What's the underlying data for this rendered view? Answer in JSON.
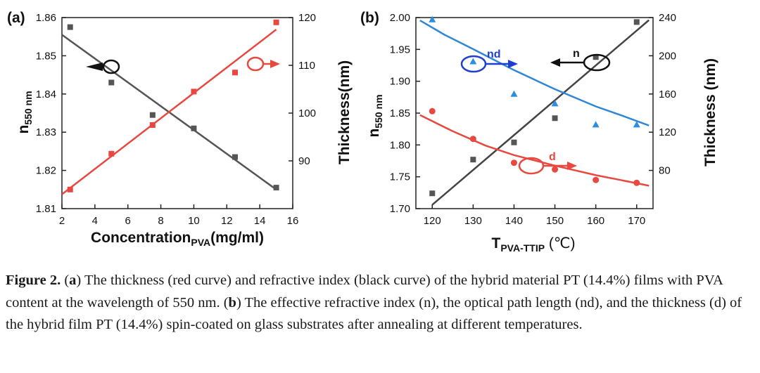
{
  "panel_a_label": "(a)",
  "panel_b_label": "(b)",
  "caption": {
    "label": "Figure 2.",
    "a_tag": "a",
    "a_text": "The thickness (red curve) and refractive index (black curve) of the hybrid material PT (14.4%) films with PVA content at the wavelength of 550 nm.",
    "b_tag": "b",
    "b_text": "The effective refractive index (n), the optical path length (nd), and the thickness (d) of the hybrid film PT (14.4%) spin-coated on glass substrates after annealing at different temperatures."
  },
  "chart_data": [
    {
      "panel": "a",
      "type": "scatter",
      "title": "",
      "xlabel": "Concentration",
      "xlabel_sub": "PVA",
      "xlabel_suffix": "(mg/ml)",
      "ylabel": "n",
      "ylabel_sub": "550 nm",
      "y2label": "Thickness(nm)",
      "xlim": [
        2,
        16
      ],
      "ylim": [
        1.81,
        1.86
      ],
      "y2lim": [
        80,
        120
      ],
      "xticks": [
        "2",
        "4",
        "6",
        "8",
        "10",
        "12",
        "14",
        "16"
      ],
      "yticks": [
        "1.81",
        "1.82",
        "1.83",
        "1.84",
        "1.85",
        "1.86"
      ],
      "y2ticks": [
        "90",
        "100",
        "110",
        "120"
      ],
      "series": [
        {
          "name": "refractive index",
          "axis": "left",
          "color": "#555555",
          "marker": "square",
          "x": [
            2.5,
            5,
            7.5,
            10,
            12.5,
            15
          ],
          "values": [
            1.8575,
            1.843,
            1.8345,
            1.831,
            1.8235,
            1.8155
          ],
          "fit": [
            [
              2,
              1.8555
            ],
            [
              15,
              1.815
            ]
          ]
        },
        {
          "name": "thickness",
          "axis": "right",
          "color": "#e8483f",
          "marker": "square",
          "x": [
            2.5,
            5,
            7.5,
            10,
            12.5,
            15
          ],
          "values": [
            84,
            91.5,
            97.5,
            104.5,
            108.5,
            119
          ],
          "fit": [
            [
              2,
              83
            ],
            [
              15,
              117.5
            ]
          ]
        }
      ],
      "annotations": [
        {
          "target": "n",
          "arrow": "left",
          "color": "#111111"
        },
        {
          "target": "thickness",
          "arrow": "right",
          "color": "#e8483f"
        }
      ]
    },
    {
      "panel": "b",
      "type": "scatter",
      "title": "",
      "xlabel": "T",
      "xlabel_sub": "PVA-TTIP",
      "xlabel_suffix": " (℃)",
      "ylabel": "n",
      "ylabel_sub": "550 nm",
      "y2label": "Thickness (nm)",
      "xlim": [
        116,
        174
      ],
      "ylim": [
        1.7,
        2.0
      ],
      "y2lim": [
        40,
        240
      ],
      "xticks": [
        "120",
        "130",
        "140",
        "150",
        "160",
        "170"
      ],
      "yticks": [
        "1.70",
        "1.75",
        "1.80",
        "1.85",
        "1.90",
        "1.95",
        "2.00"
      ],
      "y2ticks": [
        "80",
        "120",
        "160",
        "200",
        "240"
      ],
      "series": [
        {
          "name": "n",
          "axis": "left",
          "color": "#555555",
          "marker": "square",
          "x": [
            120,
            130,
            140,
            150,
            160,
            170
          ],
          "values": [
            1.724,
            1.777,
            1.804,
            1.842,
            1.938,
            1.993
          ],
          "fit_linear": [
            [
              120,
              1.706
            ],
            [
              173,
              1.996
            ]
          ]
        },
        {
          "name": "nd",
          "axis": "right",
          "color": "#2b8ee0",
          "marker": "triangle",
          "x": [
            120,
            130,
            140,
            150,
            160,
            170
          ],
          "values": [
            238,
            194,
            160,
            150,
            128,
            128
          ],
          "curve_color": "#2f86d6",
          "curve": [
            [
              117,
              237
            ],
            [
              123,
              222
            ],
            [
              130,
              207
            ],
            [
              140,
              185
            ],
            [
              150,
              165
            ],
            [
              160,
              147
            ],
            [
              166,
              138
            ],
            [
              173,
              127
            ]
          ]
        },
        {
          "name": "d",
          "axis": "right",
          "color": "#e8483f",
          "marker": "circle",
          "x": [
            120,
            130,
            140,
            150,
            160,
            170
          ],
          "values": [
            142,
            113,
            88,
            81,
            70,
            67
          ],
          "curve": [
            [
              117,
              138
            ],
            [
              125,
              121
            ],
            [
              133,
              106
            ],
            [
              140,
              96
            ],
            [
              150,
              85
            ],
            [
              160,
              75
            ],
            [
              166,
              70
            ],
            [
              173,
              64
            ]
          ]
        }
      ],
      "annotations": [
        {
          "label": "nd",
          "arrow": "right",
          "color": "#1f3fd1"
        },
        {
          "label": "n",
          "arrow": "left",
          "color": "#111111"
        },
        {
          "label": "d",
          "arrow": "right",
          "color": "#e8483f"
        }
      ]
    }
  ]
}
